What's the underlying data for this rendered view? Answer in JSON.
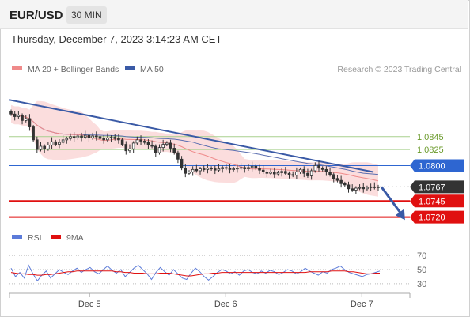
{
  "header": {
    "symbol": "EUR/USD",
    "timeframe": "30 MIN"
  },
  "timestamp": "Thursday, December 7, 2023 3:14:23 AM CET",
  "legend": {
    "ma20": "MA 20 + Bollinger Bands",
    "ma50": "MA 50",
    "credit": "Research © 2023 Trading Central",
    "rsi": "RSI",
    "ma9": "9MA"
  },
  "colors": {
    "ma20": "#ef8a8a",
    "band": "#f9d2d2",
    "ma50": "#5c6fb0",
    "trend": "#3a5aa6",
    "level_green": "#a8d08d",
    "level_green_text": "#6a9a2a",
    "level_blue": "#2e66d1",
    "level_red": "#e01010",
    "current": "#333333",
    "up": "#ffffff",
    "down": "#333333"
  },
  "chart_data": [
    {
      "type": "candlestick",
      "title": "EUR/USD",
      "ylim": [
        1.0711,
        1.0922
      ],
      "x_labels": [
        "Dec 5",
        "Dec 6",
        "Dec 7"
      ],
      "levels": [
        {
          "label": "1.0845",
          "value": 1.0845,
          "style": "resistance-minor"
        },
        {
          "label": "1.0825",
          "value": 1.0825,
          "style": "resistance-minor"
        },
        {
          "label": "1.0800",
          "value": 1.08,
          "style": "resistance"
        },
        {
          "label": "1.0767",
          "value": 1.0767,
          "style": "current"
        },
        {
          "label": "1.0745",
          "value": 1.0745,
          "style": "support"
        },
        {
          "label": "1.0720",
          "value": 1.072,
          "style": "support"
        }
      ],
      "trendline": {
        "start": [
          0,
          1.0902
        ],
        "end": [
          100,
          1.079
        ]
      },
      "forecast_arrow": {
        "from": [
          100,
          1.0767
        ],
        "to": [
          106,
          1.0718
        ]
      },
      "price_series": [
        1.088,
        1.0876,
        1.0878,
        1.087,
        1.0873,
        1.086,
        1.084,
        1.0825,
        1.083,
        1.0826,
        1.0832,
        1.0837,
        1.0833,
        1.0836,
        1.084,
        1.0842,
        1.0845,
        1.0843,
        1.0846,
        1.0844,
        1.0847,
        1.0843,
        1.0846,
        1.0845,
        1.0842,
        1.084,
        1.0843,
        1.0844,
        1.0842,
        1.084,
        1.0833,
        1.0823,
        1.0826,
        1.0835,
        1.084,
        1.0838,
        1.0836,
        1.0832,
        1.083,
        1.082,
        1.0828,
        1.0833,
        1.0835,
        1.0827,
        1.082,
        1.081,
        1.0796,
        1.0788,
        1.079,
        1.0794,
        1.0792,
        1.0795,
        1.0794,
        1.0796,
        1.0795,
        1.0793,
        1.0795,
        1.0797,
        1.0796,
        1.0794,
        1.0795,
        1.0796,
        1.0797,
        1.0795,
        1.0797,
        1.0799,
        1.0796,
        1.0793,
        1.079,
        1.0788,
        1.079,
        1.0787,
        1.0789,
        1.0791,
        1.0788,
        1.0786,
        1.0785,
        1.079,
        1.0794,
        1.0788,
        1.0784,
        1.0792,
        1.08,
        1.0796,
        1.0794,
        1.079,
        1.0786,
        1.078,
        1.0777,
        1.0772,
        1.077,
        1.0764,
        1.0762,
        1.0765,
        1.0766,
        1.0764,
        1.0766,
        1.0767,
        1.0766,
        1.0767
      ]
    },
    {
      "type": "line",
      "title": "RSI",
      "ylim": [
        22,
        78
      ],
      "ticks": [
        70,
        50,
        30
      ],
      "series": [
        {
          "name": "RSI",
          "values": [
            52,
            40,
            46,
            38,
            56,
            44,
            34,
            42,
            48,
            38,
            44,
            50,
            46,
            43,
            48,
            52,
            46,
            50,
            53,
            47,
            44,
            50,
            55,
            49,
            45,
            50,
            40,
            46,
            52,
            56,
            50,
            44,
            36,
            46,
            53,
            47,
            42,
            50,
            44,
            38,
            36,
            45,
            52,
            47,
            40,
            35,
            40,
            46,
            50,
            48,
            44,
            47,
            42,
            48,
            50,
            46,
            44,
            48,
            45,
            49,
            47,
            43,
            46,
            50,
            48,
            44,
            47,
            52,
            48,
            45,
            42,
            47,
            45,
            50,
            52,
            55,
            50,
            46,
            44,
            42,
            40,
            43,
            44,
            46,
            48
          ]
        },
        {
          "name": "9MA",
          "values": [
            46,
            45,
            44,
            44,
            43,
            43,
            42,
            42,
            43,
            43,
            44,
            45,
            46,
            47,
            47,
            48,
            48,
            48,
            48,
            48,
            48,
            48,
            48,
            48,
            47,
            47,
            46,
            46,
            45,
            45,
            45,
            44,
            44,
            44,
            45,
            45,
            45,
            44,
            43,
            42,
            41,
            41,
            42,
            43,
            44,
            44,
            45,
            45,
            46,
            46,
            46,
            46,
            46,
            46,
            46,
            46,
            46,
            46,
            46,
            46,
            46,
            46,
            46,
            46,
            46,
            46,
            46,
            46,
            47,
            47,
            47,
            47,
            47,
            48,
            48,
            48,
            48,
            47,
            47,
            46,
            45,
            44,
            44,
            45,
            45
          ]
        }
      ]
    }
  ]
}
